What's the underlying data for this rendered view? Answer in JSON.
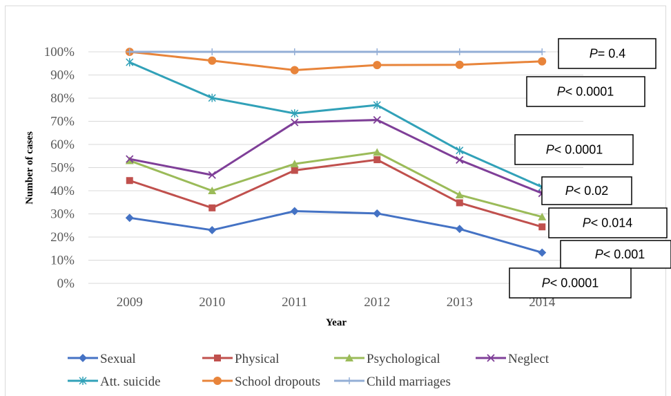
{
  "chart_data": {
    "type": "line",
    "xlabel": "Year",
    "ylabel": "Number of cases",
    "categories": [
      "2009",
      "2010",
      "2011",
      "2012",
      "2013",
      "2014"
    ],
    "ylim": [
      0,
      100
    ],
    "y_ticks": [
      "0%",
      "10%",
      "20%",
      "30%",
      "40%",
      "50%",
      "60%",
      "70%",
      "80%",
      "90%",
      "100%"
    ],
    "grid": true,
    "legend_position": "bottom",
    "series": [
      {
        "name": "Sexual",
        "color": "#4472c4",
        "marker": "diamond",
        "values": [
          28.3,
          23.0,
          31.2,
          30.2,
          23.5,
          13.3
        ]
      },
      {
        "name": "Physical",
        "color": "#c0504d",
        "marker": "square",
        "values": [
          44.4,
          32.6,
          48.8,
          53.4,
          34.8,
          24.4
        ]
      },
      {
        "name": "Psychological",
        "color": "#9bbb59",
        "marker": "triangle",
        "values": [
          53.0,
          40.0,
          51.6,
          56.6,
          38.2,
          28.7
        ]
      },
      {
        "name": "Neglect",
        "color": "#7f3f98",
        "marker": "x",
        "values": [
          53.7,
          46.8,
          69.5,
          70.6,
          53.3,
          38.9
        ]
      },
      {
        "name": "Att. suicide",
        "color": "#31a1b8",
        "marker": "star",
        "values": [
          95.5,
          80.1,
          73.4,
          77.0,
          57.4,
          41.6
        ]
      },
      {
        "name": "School dropouts",
        "color": "#e8843a",
        "marker": "circle",
        "values": [
          100.0,
          96.2,
          92.1,
          94.3,
          94.4,
          95.9
        ]
      },
      {
        "name": "Child marriages",
        "color": "#93aed6",
        "marker": "plus",
        "values": [
          100.0,
          100.0,
          100.0,
          100.0,
          100.0,
          100.0
        ]
      }
    ],
    "annotations": [
      {
        "italic": "P",
        "rest": "= 0.4"
      },
      {
        "italic": "P",
        "rest": "< 0.0001"
      },
      {
        "italic": "P",
        "rest": "< 0.0001"
      },
      {
        "italic": "P",
        "rest": "< 0.02"
      },
      {
        "italic": "P",
        "rest": "< 0.014"
      },
      {
        "italic": "P",
        "rest": "< 0.001"
      },
      {
        "italic": "P",
        "rest": "< 0.0001"
      }
    ]
  }
}
